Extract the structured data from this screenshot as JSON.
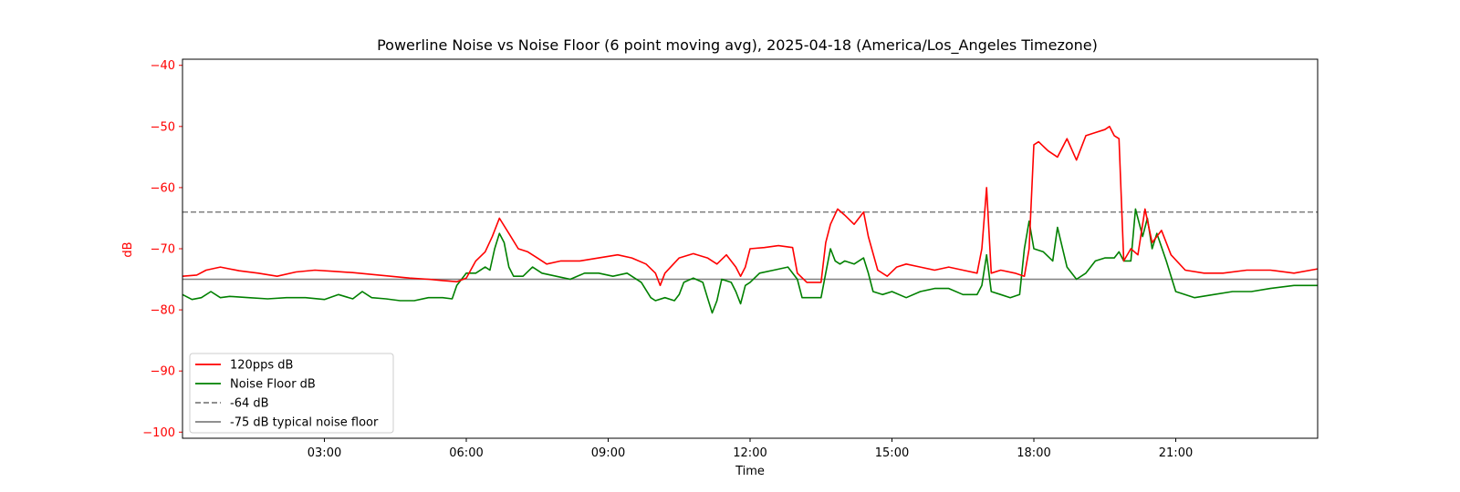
{
  "chart_data": {
    "type": "line",
    "title": "Powerline Noise vs Noise Floor (6 point moving avg), 2025-04-18 (America/Los_Angeles Timezone)",
    "xlabel": "Time",
    "ylabel": "dB",
    "xlim": [
      0.0,
      24.0
    ],
    "ylim": [
      -101,
      -39
    ],
    "x_ticks": [
      3,
      6,
      9,
      12,
      15,
      18,
      21
    ],
    "x_tick_labels": [
      "03:00",
      "06:00",
      "09:00",
      "12:00",
      "15:00",
      "18:00",
      "21:00"
    ],
    "y_ticks": [
      -100,
      -90,
      -80,
      -70,
      -60,
      -50,
      -40
    ],
    "y_tick_labels": [
      "−100",
      "−90",
      "−80",
      "−70",
      "−60",
      "−50",
      "−40"
    ],
    "y_axis_color": "#ff0000",
    "grid": false,
    "legend_position": "lower-left",
    "series": [
      {
        "name": "120pps dB",
        "color": "#ff0000",
        "style": "solid",
        "x": [
          0.0,
          0.3,
          0.5,
          0.8,
          1.2,
          1.6,
          2.0,
          2.4,
          2.8,
          3.2,
          3.6,
          4.0,
          4.4,
          4.8,
          5.2,
          5.5,
          5.8,
          6.0,
          6.2,
          6.4,
          6.55,
          6.7,
          6.9,
          7.1,
          7.3,
          7.5,
          7.7,
          8.0,
          8.4,
          8.8,
          9.2,
          9.5,
          9.8,
          10.0,
          10.1,
          10.2,
          10.5,
          10.8,
          11.1,
          11.3,
          11.5,
          11.7,
          11.8,
          11.9,
          12.0,
          12.3,
          12.6,
          12.9,
          13.0,
          13.2,
          13.5,
          13.6,
          13.7,
          13.85,
          14.0,
          14.2,
          14.4,
          14.5,
          14.7,
          14.9,
          15.1,
          15.3,
          15.6,
          15.9,
          16.2,
          16.5,
          16.8,
          16.9,
          17.0,
          17.1,
          17.3,
          17.6,
          17.8,
          17.9,
          18.0,
          18.1,
          18.3,
          18.5,
          18.7,
          18.9,
          19.1,
          19.3,
          19.5,
          19.6,
          19.7,
          19.8,
          19.9,
          20.05,
          20.2,
          20.35,
          20.5,
          20.7,
          20.9,
          21.2,
          21.6,
          22.0,
          22.5,
          23.0,
          23.5,
          24.0
        ],
        "y": [
          -74.5,
          -74.3,
          -73.5,
          -73.0,
          -73.6,
          -74.0,
          -74.5,
          -73.8,
          -73.5,
          -73.7,
          -73.9,
          -74.2,
          -74.5,
          -74.8,
          -75.0,
          -75.2,
          -75.4,
          -74.8,
          -72.0,
          -70.5,
          -68.0,
          -65.0,
          -67.5,
          -70.0,
          -70.5,
          -71.5,
          -72.5,
          -72.0,
          -72.0,
          -71.5,
          -71.0,
          -71.5,
          -72.5,
          -74.0,
          -76.0,
          -74.0,
          -71.5,
          -70.8,
          -71.5,
          -72.5,
          -71.0,
          -73.0,
          -74.5,
          -73.0,
          -70.0,
          -69.8,
          -69.5,
          -69.8,
          -74.0,
          -75.5,
          -75.5,
          -69.0,
          -66.0,
          -63.5,
          -64.5,
          -66.0,
          -64.0,
          -68.0,
          -73.5,
          -74.5,
          -73.0,
          -72.5,
          -73.0,
          -73.5,
          -73.0,
          -73.5,
          -74.0,
          -70.0,
          -60.0,
          -74.0,
          -73.5,
          -74.0,
          -74.5,
          -70.0,
          -53.0,
          -52.5,
          -54.0,
          -55.0,
          -52.0,
          -55.5,
          -51.5,
          -51.0,
          -50.5,
          -50.0,
          -51.5,
          -52.0,
          -72.0,
          -70.0,
          -71.0,
          -63.5,
          -69.0,
          -67.0,
          -71.0,
          -73.5,
          -74.0,
          -74.0,
          -73.5,
          -73.5,
          -74.0,
          -73.3
        ]
      },
      {
        "name": "Noise Floor dB",
        "color": "#008000",
        "style": "solid",
        "x": [
          0.0,
          0.2,
          0.4,
          0.6,
          0.8,
          1.0,
          1.4,
          1.8,
          2.2,
          2.6,
          3.0,
          3.3,
          3.6,
          3.8,
          4.0,
          4.3,
          4.6,
          4.9,
          5.2,
          5.5,
          5.7,
          5.8,
          6.0,
          6.2,
          6.4,
          6.5,
          6.6,
          6.7,
          6.8,
          6.9,
          7.0,
          7.2,
          7.4,
          7.6,
          7.9,
          8.2,
          8.5,
          8.8,
          9.1,
          9.4,
          9.7,
          9.9,
          10.0,
          10.2,
          10.4,
          10.5,
          10.6,
          10.8,
          11.0,
          11.1,
          11.2,
          11.3,
          11.4,
          11.6,
          11.7,
          11.8,
          11.9,
          12.0,
          12.2,
          12.5,
          12.8,
          13.0,
          13.1,
          13.3,
          13.5,
          13.6,
          13.7,
          13.8,
          13.9,
          14.0,
          14.2,
          14.4,
          14.5,
          14.6,
          14.8,
          15.0,
          15.3,
          15.6,
          15.9,
          16.2,
          16.5,
          16.8,
          16.9,
          17.0,
          17.1,
          17.3,
          17.5,
          17.7,
          17.8,
          17.9,
          18.0,
          18.2,
          18.4,
          18.5,
          18.7,
          18.9,
          19.1,
          19.3,
          19.5,
          19.7,
          19.8,
          19.9,
          20.0,
          20.05,
          20.15,
          20.3,
          20.4,
          20.5,
          20.6,
          20.8,
          21.0,
          21.4,
          21.8,
          22.2,
          22.6,
          23.0,
          23.5,
          24.0
        ],
        "y": [
          -77.5,
          -78.3,
          -78.0,
          -77.0,
          -78.0,
          -77.8,
          -78.0,
          -78.2,
          -78.0,
          -78.0,
          -78.3,
          -77.5,
          -78.2,
          -77.0,
          -78.0,
          -78.2,
          -78.5,
          -78.5,
          -78.0,
          -78.0,
          -78.2,
          -76.0,
          -74.0,
          -74.0,
          -73.0,
          -73.5,
          -70.0,
          -67.5,
          -69.0,
          -73.0,
          -74.5,
          -74.5,
          -73.0,
          -74.0,
          -74.5,
          -75.0,
          -74.0,
          -74.0,
          -74.5,
          -74.0,
          -75.5,
          -78.0,
          -78.5,
          -78.0,
          -78.5,
          -77.5,
          -75.5,
          -74.8,
          -75.5,
          -78.0,
          -80.5,
          -78.5,
          -75.0,
          -75.5,
          -77.0,
          -79.0,
          -76.0,
          -75.5,
          -74.0,
          -73.5,
          -73.0,
          -75.0,
          -78.0,
          -78.0,
          -78.0,
          -74.0,
          -70.0,
          -72.0,
          -72.5,
          -72.0,
          -72.5,
          -71.5,
          -74.0,
          -77.0,
          -77.5,
          -77.0,
          -78.0,
          -77.0,
          -76.5,
          -76.5,
          -77.5,
          -77.5,
          -76.0,
          -71.0,
          -77.0,
          -77.5,
          -78.0,
          -77.5,
          -70.0,
          -65.5,
          -70.0,
          -70.5,
          -72.0,
          -66.5,
          -73.0,
          -75.0,
          -74.0,
          -72.0,
          -71.5,
          -71.5,
          -70.5,
          -72.0,
          -72.0,
          -72.0,
          -63.5,
          -68.0,
          -65.0,
          -70.0,
          -67.5,
          -72.0,
          -77.0,
          -78.0,
          -77.5,
          -77.0,
          -77.0,
          -76.5,
          -76.0,
          -76.0
        ]
      },
      {
        "name": "-64 dB",
        "color": "#808080",
        "style": "dashed",
        "x": [
          0.0,
          24.0
        ],
        "y": [
          -64,
          -64
        ]
      },
      {
        "name": "-75 dB typical noise floor",
        "color": "#808080",
        "style": "solid",
        "x": [
          0.0,
          24.0
        ],
        "y": [
          -75,
          -75
        ]
      }
    ]
  }
}
